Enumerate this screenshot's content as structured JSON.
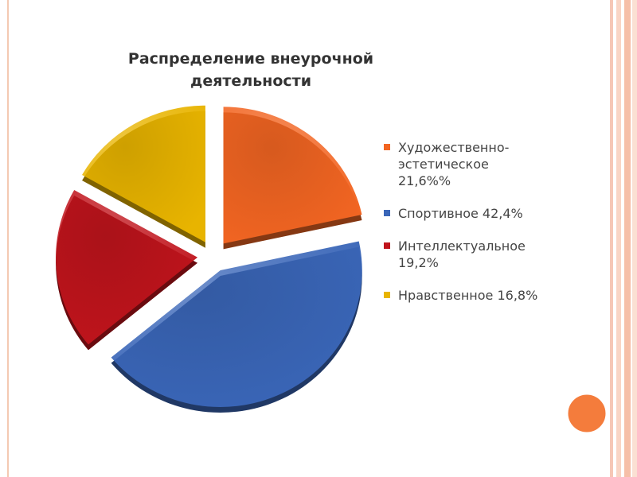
{
  "chart_data": {
    "type": "pie",
    "title": "Распределение внеурочной деятельности",
    "categories": [
      "Художественно-эстетическое 21,6%%",
      "Спортивное 42,4%",
      "Интеллектуальное 19,2%",
      "Нравственное 16,8%"
    ],
    "values": [
      21.6,
      42.4,
      19.2,
      16.8
    ],
    "colors": [
      "#f26522",
      "#3a66b8",
      "#c0141c",
      "#e8b400"
    ],
    "legend": "right"
  }
}
